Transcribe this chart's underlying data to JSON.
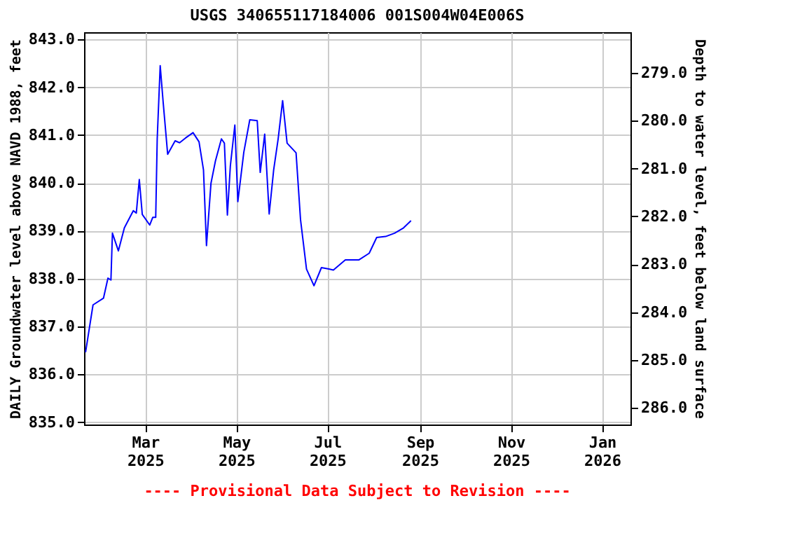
{
  "chart_data": {
    "type": "line",
    "title": "USGS 340655117184006 001S004W04E006S",
    "ylabel": "DAILY Groundwater level above NAVD 1988, feet",
    "y2label": "Depth to water level, feet below land surface",
    "annotations": [
      "---- Provisional Data Subject to Revision ----"
    ],
    "x": [
      "2025-01-20",
      "2025-01-25",
      "2025-02-01",
      "2025-02-04",
      "2025-02-06",
      "2025-02-07",
      "2025-02-11",
      "2025-02-15",
      "2025-02-21",
      "2025-02-23",
      "2025-02-25",
      "2025-02-27",
      "2025-03-04",
      "2025-03-06",
      "2025-03-08",
      "2025-03-09",
      "2025-03-11",
      "2025-03-13",
      "2025-03-16",
      "2025-03-21",
      "2025-03-24",
      "2025-03-28",
      "2025-04-02",
      "2025-04-06",
      "2025-04-09",
      "2025-04-11",
      "2025-04-14",
      "2025-04-17",
      "2025-04-21",
      "2025-04-23",
      "2025-04-25",
      "2025-04-27",
      "2025-04-30",
      "2025-05-02",
      "2025-05-06",
      "2025-05-10",
      "2025-05-15",
      "2025-05-17",
      "2025-05-20",
      "2025-05-23",
      "2025-05-26",
      "2025-05-29",
      "2025-06-01",
      "2025-06-04",
      "2025-06-10",
      "2025-06-13",
      "2025-06-17",
      "2025-06-22",
      "2025-06-27",
      "2025-07-02",
      "2025-07-05",
      "2025-07-13",
      "2025-07-22",
      "2025-07-29",
      "2025-08-03",
      "2025-08-09",
      "2025-08-15",
      "2025-08-21",
      "2025-08-26"
    ],
    "series": [
      {
        "color": "#0000ff",
        "values": [
          836.46,
          837.45,
          837.59,
          838.01,
          837.97,
          838.95,
          838.58,
          839.06,
          839.42,
          839.37,
          840.07,
          839.34,
          839.12,
          839.28,
          839.28,
          840.92,
          842.45,
          841.68,
          840.6,
          840.88,
          840.84,
          840.94,
          841.05,
          840.86,
          840.27,
          838.69,
          839.99,
          840.46,
          840.92,
          840.83,
          839.33,
          840.36,
          841.21,
          839.61,
          840.64,
          841.32,
          841.3,
          840.22,
          841.02,
          839.35,
          840.27,
          840.92,
          841.72,
          840.83,
          840.63,
          839.23,
          838.2,
          837.85,
          838.23,
          838.2,
          838.18,
          838.39,
          838.39,
          838.53,
          838.86,
          838.88,
          838.95,
          839.06,
          839.21
        ]
      }
    ],
    "xlim": [
      "2025-01-19",
      "2026-01-20"
    ],
    "xticks": [
      {
        "value": "2025-03-01",
        "label": "Mar 2025"
      },
      {
        "value": "2025-05-01",
        "label": "May 2025"
      },
      {
        "value": "2025-07-01",
        "label": "Jul 2025"
      },
      {
        "value": "2025-09-01",
        "label": "Sep 2025"
      },
      {
        "value": "2025-11-01",
        "label": "Nov 2025"
      },
      {
        "value": "2026-01-01",
        "label": "Jan 2026"
      }
    ],
    "ylim": [
      834.95,
      843.15
    ],
    "yticks": [
      {
        "value": 835,
        "label": "835.0"
      },
      {
        "value": 836,
        "label": "836.0"
      },
      {
        "value": 837,
        "label": "837.0"
      },
      {
        "value": 838,
        "label": "838.0"
      },
      {
        "value": 839,
        "label": "839.0"
      },
      {
        "value": 840,
        "label": "840.0"
      },
      {
        "value": 841,
        "label": "841.0"
      },
      {
        "value": 842,
        "label": "842.0"
      },
      {
        "value": 843,
        "label": "843.0"
      }
    ],
    "y2lim": [
      286.35,
      278.15
    ],
    "y2ticks": [
      {
        "value": 279,
        "label": "279.0"
      },
      {
        "value": 280,
        "label": "280.0"
      },
      {
        "value": 281,
        "label": "281.0"
      },
      {
        "value": 282,
        "label": "282.0"
      },
      {
        "value": 283,
        "label": "283.0"
      },
      {
        "value": 284,
        "label": "284.0"
      },
      {
        "value": 285,
        "label": "285.0"
      },
      {
        "value": 286,
        "label": "286.0"
      }
    ],
    "grid": true,
    "marker": "none",
    "line_style": "solid"
  }
}
